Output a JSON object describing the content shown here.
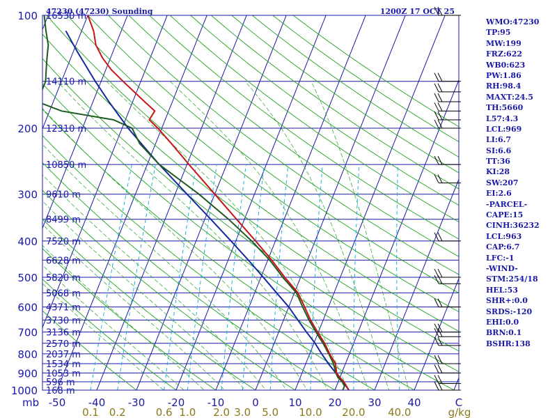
{
  "header": {
    "station": "47230 (47230) Sounding",
    "time": "1200Z 17 OCT 25"
  },
  "stats": [
    "WMO:47230",
    "TP:95",
    "MW:199",
    "FRZ:622",
    "WB0:623",
    "PW:1.86",
    "RH:98.4",
    "MAXT:24.5",
    "TH:5660",
    "L57:4.3",
    "LCL:969",
    "LI:6.7",
    "SI:6.6",
    "TT:36",
    "KI:28",
    "SW:207",
    "EI:2.6",
    "-PARCEL-",
    "CAPE:15",
    "CINH:36232",
    "LCL:963",
    "CAP:6.7",
    "LFC:-1",
    "-WIND-",
    "STM:254/18",
    "HEL:53",
    "SHR+:0.0",
    "SRDS:-120",
    "EHI:0.0",
    "BRN:0.1",
    "BSHR:138"
  ],
  "colors": {
    "isobar": "#1a1aa6",
    "isotherm": "#1a1aa6",
    "dry_adiabat": "#1fa21f",
    "moist_adiabat": "#1fa21f",
    "mixing_ratio": "#1ab0e0",
    "temperature": "#c81414",
    "dewpoint": "#1e5a1e",
    "parcel": "#1428a0",
    "wind_barb": "#000000"
  },
  "chart_data": {
    "type": "line",
    "chart_kind": "Skew-T log-P",
    "pressure_levels_hpa": [
      100,
      200,
      300,
      400,
      500,
      600,
      700,
      800,
      900,
      1000
    ],
    "pressure_tick_labels": [
      "100",
      "200",
      "300",
      "400",
      "500",
      "600",
      "700",
      "800",
      "900",
      "1000"
    ],
    "pressure_unit_label": "mb",
    "temperature_ticks_c": [
      -50,
      -40,
      -30,
      -20,
      -10,
      0,
      10,
      20,
      30,
      40
    ],
    "temperature_tick_labels": [
      "-50",
      "-40",
      "-30",
      "-20",
      "-10",
      "0",
      "10",
      "20",
      "30",
      "40"
    ],
    "temperature_unit_label": "C",
    "mixing_ratio_labels": [
      "0.1",
      "0.2",
      "0.6",
      "1.0",
      "2.0",
      "3.0",
      "5.0",
      "10.0",
      "20.0",
      "40.0"
    ],
    "mixing_ratio_unit": "g/kg",
    "height_labels": [
      {
        "p": 100,
        "text": "16530 m"
      },
      {
        "p": 150,
        "text": "14110 m"
      },
      {
        "p": 200,
        "text": "12310 m"
      },
      {
        "p": 250,
        "text": "10850 m"
      },
      {
        "p": 300,
        "text": "9610 m"
      },
      {
        "p": 350,
        "text": "8499 m"
      },
      {
        "p": 400,
        "text": "7520 m"
      },
      {
        "p": 450,
        "text": "6628 m"
      },
      {
        "p": 500,
        "text": "5820 m"
      },
      {
        "p": 550,
        "text": "5068 m"
      },
      {
        "p": 600,
        "text": "4371 m"
      },
      {
        "p": 650,
        "text": "3730 m"
      },
      {
        "p": 700,
        "text": "3136 m"
      },
      {
        "p": 750,
        "text": "2570 m"
      },
      {
        "p": 800,
        "text": "2037 m"
      },
      {
        "p": 850,
        "text": "1534 m"
      },
      {
        "p": 900,
        "text": "1053 m"
      },
      {
        "p": 950,
        "text": "596 m"
      },
      {
        "p": 1000,
        "text": "168 m"
      }
    ],
    "temperature": [
      {
        "p": 1000,
        "t": 23.5
      },
      {
        "p": 975,
        "t": 22.5
      },
      {
        "p": 950,
        "t": 21.4
      },
      {
        "p": 925,
        "t": 20.0
      },
      {
        "p": 900,
        "t": 18.7
      },
      {
        "p": 850,
        "t": 17.5
      },
      {
        "p": 800,
        "t": 15.0
      },
      {
        "p": 750,
        "t": 12.7
      },
      {
        "p": 700,
        "t": 9.8
      },
      {
        "p": 650,
        "t": 6.8
      },
      {
        "p": 600,
        "t": 4.0
      },
      {
        "p": 550,
        "t": 0.9
      },
      {
        "p": 500,
        "t": -4.0
      },
      {
        "p": 450,
        "t": -9.0
      },
      {
        "p": 400,
        "t": -15.0
      },
      {
        "p": 350,
        "t": -22.0
      },
      {
        "p": 300,
        "t": -30.0
      },
      {
        "p": 250,
        "t": -39.5
      },
      {
        "p": 220,
        "t": -46.0
      },
      {
        "p": 200,
        "t": -51.0
      },
      {
        "p": 190,
        "t": -54.0
      },
      {
        "p": 180,
        "t": -53.5
      },
      {
        "p": 170,
        "t": -57.0
      },
      {
        "p": 150,
        "t": -64.5
      },
      {
        "p": 140,
        "t": -68.5
      },
      {
        "p": 130,
        "t": -72.0
      },
      {
        "p": 120,
        "t": -75.0
      },
      {
        "p": 110,
        "t": -77.0
      },
      {
        "p": 100,
        "t": -80.0
      }
    ],
    "dewpoint": [
      {
        "p": 1000,
        "t": 22.0
      },
      {
        "p": 975,
        "t": 22.0
      },
      {
        "p": 950,
        "t": 21.0
      },
      {
        "p": 925,
        "t": 19.5
      },
      {
        "p": 900,
        "t": 18.5
      },
      {
        "p": 850,
        "t": 17.0
      },
      {
        "p": 800,
        "t": 14.8
      },
      {
        "p": 750,
        "t": 12.3
      },
      {
        "p": 700,
        "t": 9.4
      },
      {
        "p": 650,
        "t": 6.4
      },
      {
        "p": 600,
        "t": 3.5
      },
      {
        "p": 550,
        "t": 0.5
      },
      {
        "p": 500,
        "t": -4.5
      },
      {
        "p": 450,
        "t": -9.5
      },
      {
        "p": 400,
        "t": -16.0
      },
      {
        "p": 350,
        "t": -24.0
      },
      {
        "p": 300,
        "t": -34.0
      },
      {
        "p": 250,
        "t": -47.0
      },
      {
        "p": 220,
        "t": -54.0
      },
      {
        "p": 200,
        "t": -57.5
      },
      {
        "p": 190,
        "t": -63.0
      },
      {
        "p": 180,
        "t": -77.0
      },
      {
        "p": 170,
        "t": -84.0
      },
      {
        "p": 150,
        "t": -84.0
      },
      {
        "p": 140,
        "t": -85.0
      },
      {
        "p": 130,
        "t": -86.0
      },
      {
        "p": 120,
        "t": -87.0
      },
      {
        "p": 110,
        "t": -89.0
      },
      {
        "p": 100,
        "t": -91.0
      }
    ],
    "parcel": [
      {
        "p": 1000,
        "t": 23.5
      },
      {
        "p": 960,
        "t": 21.7
      },
      {
        "p": 900,
        "t": 18.5
      },
      {
        "p": 850,
        "t": 15.7
      },
      {
        "p": 800,
        "t": 13.0
      },
      {
        "p": 750,
        "t": 10.3
      },
      {
        "p": 700,
        "t": 7.0
      },
      {
        "p": 650,
        "t": 3.6
      },
      {
        "p": 600,
        "t": 0.0
      },
      {
        "p": 550,
        "t": -4.5
      },
      {
        "p": 500,
        "t": -9.4
      },
      {
        "p": 450,
        "t": -14.9
      },
      {
        "p": 400,
        "t": -21.2
      },
      {
        "p": 350,
        "t": -28.5
      },
      {
        "p": 300,
        "t": -37.0
      },
      {
        "p": 250,
        "t": -47.0
      },
      {
        "p": 200,
        "t": -58.5
      },
      {
        "p": 170,
        "t": -66.0
      },
      {
        "p": 150,
        "t": -71.5
      },
      {
        "p": 125,
        "t": -79.0
      },
      {
        "p": 110,
        "t": -84.0
      }
    ],
    "wind_barb_levels_hpa": [
      100,
      150,
      160,
      170,
      180,
      190,
      200,
      250,
      280,
      400,
      500,
      520,
      600,
      700,
      720,
      760,
      850,
      900,
      960,
      1000
    ],
    "grid": true
  }
}
